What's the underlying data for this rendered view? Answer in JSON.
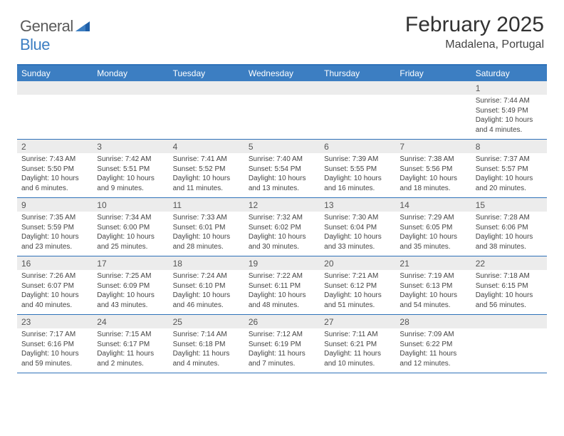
{
  "logo": {
    "text1": "General",
    "text2": "Blue",
    "color_general": "#5a5a5a",
    "color_blue": "#3c7ec2"
  },
  "title": "February 2025",
  "location": "Madalena, Portugal",
  "weekdays": [
    "Sunday",
    "Monday",
    "Tuesday",
    "Wednesday",
    "Thursday",
    "Friday",
    "Saturday"
  ],
  "header_bg": "#3c7ec2",
  "border_color": "#2f72b9",
  "daynum_bg": "#ececec",
  "weeks": [
    {
      "nums": [
        "",
        "",
        "",
        "",
        "",
        "",
        "1"
      ],
      "cells": [
        {},
        {},
        {},
        {},
        {},
        {},
        {
          "sunrise": "Sunrise: 7:44 AM",
          "sunset": "Sunset: 5:49 PM",
          "daylight": "Daylight: 10 hours and 4 minutes."
        }
      ]
    },
    {
      "nums": [
        "2",
        "3",
        "4",
        "5",
        "6",
        "7",
        "8"
      ],
      "cells": [
        {
          "sunrise": "Sunrise: 7:43 AM",
          "sunset": "Sunset: 5:50 PM",
          "daylight": "Daylight: 10 hours and 6 minutes."
        },
        {
          "sunrise": "Sunrise: 7:42 AM",
          "sunset": "Sunset: 5:51 PM",
          "daylight": "Daylight: 10 hours and 9 minutes."
        },
        {
          "sunrise": "Sunrise: 7:41 AM",
          "sunset": "Sunset: 5:52 PM",
          "daylight": "Daylight: 10 hours and 11 minutes."
        },
        {
          "sunrise": "Sunrise: 7:40 AM",
          "sunset": "Sunset: 5:54 PM",
          "daylight": "Daylight: 10 hours and 13 minutes."
        },
        {
          "sunrise": "Sunrise: 7:39 AM",
          "sunset": "Sunset: 5:55 PM",
          "daylight": "Daylight: 10 hours and 16 minutes."
        },
        {
          "sunrise": "Sunrise: 7:38 AM",
          "sunset": "Sunset: 5:56 PM",
          "daylight": "Daylight: 10 hours and 18 minutes."
        },
        {
          "sunrise": "Sunrise: 7:37 AM",
          "sunset": "Sunset: 5:57 PM",
          "daylight": "Daylight: 10 hours and 20 minutes."
        }
      ]
    },
    {
      "nums": [
        "9",
        "10",
        "11",
        "12",
        "13",
        "14",
        "15"
      ],
      "cells": [
        {
          "sunrise": "Sunrise: 7:35 AM",
          "sunset": "Sunset: 5:59 PM",
          "daylight": "Daylight: 10 hours and 23 minutes."
        },
        {
          "sunrise": "Sunrise: 7:34 AM",
          "sunset": "Sunset: 6:00 PM",
          "daylight": "Daylight: 10 hours and 25 minutes."
        },
        {
          "sunrise": "Sunrise: 7:33 AM",
          "sunset": "Sunset: 6:01 PM",
          "daylight": "Daylight: 10 hours and 28 minutes."
        },
        {
          "sunrise": "Sunrise: 7:32 AM",
          "sunset": "Sunset: 6:02 PM",
          "daylight": "Daylight: 10 hours and 30 minutes."
        },
        {
          "sunrise": "Sunrise: 7:30 AM",
          "sunset": "Sunset: 6:04 PM",
          "daylight": "Daylight: 10 hours and 33 minutes."
        },
        {
          "sunrise": "Sunrise: 7:29 AM",
          "sunset": "Sunset: 6:05 PM",
          "daylight": "Daylight: 10 hours and 35 minutes."
        },
        {
          "sunrise": "Sunrise: 7:28 AM",
          "sunset": "Sunset: 6:06 PM",
          "daylight": "Daylight: 10 hours and 38 minutes."
        }
      ]
    },
    {
      "nums": [
        "16",
        "17",
        "18",
        "19",
        "20",
        "21",
        "22"
      ],
      "cells": [
        {
          "sunrise": "Sunrise: 7:26 AM",
          "sunset": "Sunset: 6:07 PM",
          "daylight": "Daylight: 10 hours and 40 minutes."
        },
        {
          "sunrise": "Sunrise: 7:25 AM",
          "sunset": "Sunset: 6:09 PM",
          "daylight": "Daylight: 10 hours and 43 minutes."
        },
        {
          "sunrise": "Sunrise: 7:24 AM",
          "sunset": "Sunset: 6:10 PM",
          "daylight": "Daylight: 10 hours and 46 minutes."
        },
        {
          "sunrise": "Sunrise: 7:22 AM",
          "sunset": "Sunset: 6:11 PM",
          "daylight": "Daylight: 10 hours and 48 minutes."
        },
        {
          "sunrise": "Sunrise: 7:21 AM",
          "sunset": "Sunset: 6:12 PM",
          "daylight": "Daylight: 10 hours and 51 minutes."
        },
        {
          "sunrise": "Sunrise: 7:19 AM",
          "sunset": "Sunset: 6:13 PM",
          "daylight": "Daylight: 10 hours and 54 minutes."
        },
        {
          "sunrise": "Sunrise: 7:18 AM",
          "sunset": "Sunset: 6:15 PM",
          "daylight": "Daylight: 10 hours and 56 minutes."
        }
      ]
    },
    {
      "nums": [
        "23",
        "24",
        "25",
        "26",
        "27",
        "28",
        ""
      ],
      "cells": [
        {
          "sunrise": "Sunrise: 7:17 AM",
          "sunset": "Sunset: 6:16 PM",
          "daylight": "Daylight: 10 hours and 59 minutes."
        },
        {
          "sunrise": "Sunrise: 7:15 AM",
          "sunset": "Sunset: 6:17 PM",
          "daylight": "Daylight: 11 hours and 2 minutes."
        },
        {
          "sunrise": "Sunrise: 7:14 AM",
          "sunset": "Sunset: 6:18 PM",
          "daylight": "Daylight: 11 hours and 4 minutes."
        },
        {
          "sunrise": "Sunrise: 7:12 AM",
          "sunset": "Sunset: 6:19 PM",
          "daylight": "Daylight: 11 hours and 7 minutes."
        },
        {
          "sunrise": "Sunrise: 7:11 AM",
          "sunset": "Sunset: 6:21 PM",
          "daylight": "Daylight: 11 hours and 10 minutes."
        },
        {
          "sunrise": "Sunrise: 7:09 AM",
          "sunset": "Sunset: 6:22 PM",
          "daylight": "Daylight: 11 hours and 12 minutes."
        },
        {}
      ]
    }
  ]
}
